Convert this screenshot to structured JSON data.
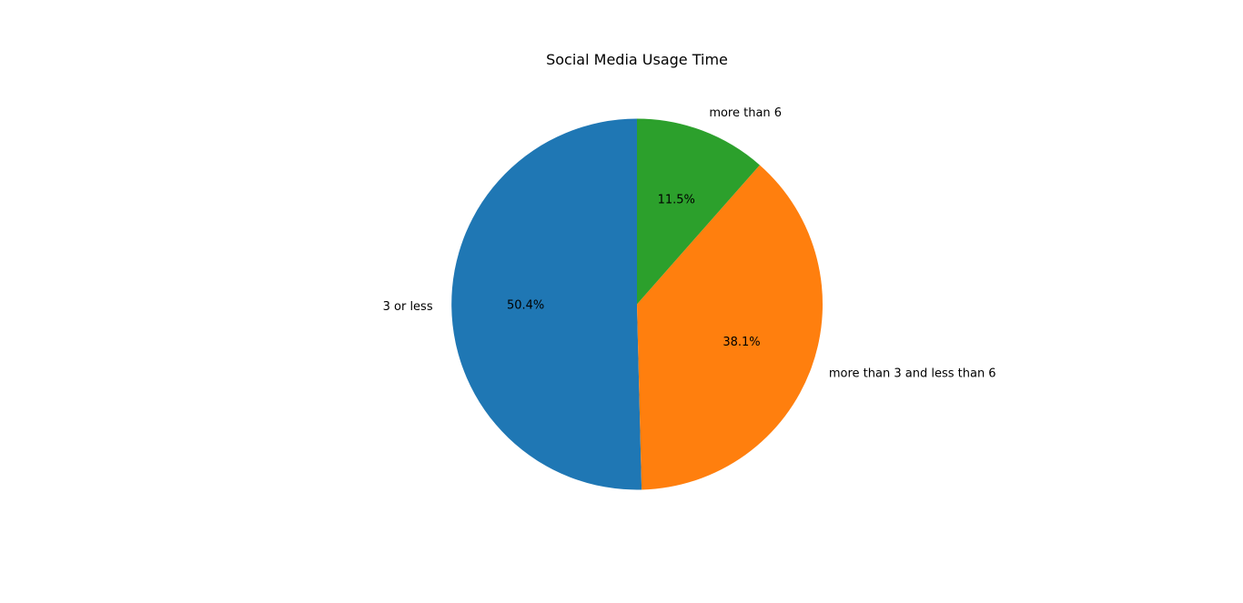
{
  "chart_data": {
    "type": "pie",
    "title": "Social Media Usage Time",
    "start_angle_deg": 90,
    "direction": "counterclockwise",
    "slices": [
      {
        "label": "3 or less",
        "value": 50.4,
        "pct_label": "50.4%",
        "color": "#1f77b4"
      },
      {
        "label": "more than 3 and less than 6",
        "value": 38.1,
        "pct_label": "38.1%",
        "color": "#ff7f0e"
      },
      {
        "label": "more than 6",
        "value": 11.5,
        "pct_label": "11.5%",
        "color": "#2ca02c"
      }
    ]
  }
}
